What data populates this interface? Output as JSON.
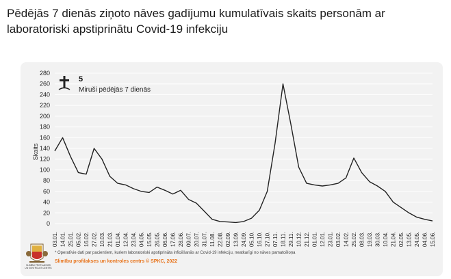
{
  "page": {
    "title": "Pēdējās 7 dienās ziņoto nāves gadījumu kumulatīvais skaits personām ar laboratoriski apstiprinātu Covid-19 infekciju"
  },
  "legend": {
    "icon": "cross-icon",
    "value": "5",
    "label": "Miruši pēdējās 7 dienās"
  },
  "footer": {
    "note": "* Operatīvie dati par pacientiem, kuriem laboratoriski apstiprināta inficēšanās ar Covid-19 infekciju, neatkarīgi no nāves pamatcēloņa",
    "credit": "Slimību profilakses un kontroles centrs © SPKC, 2022",
    "logo_text": "SLIMĪBU PROFILAKSES UN KONTROLES CENTRS"
  },
  "colors": {
    "line": "#222222",
    "grid": "#ffffff",
    "background": "#f2f2f2",
    "credit": "#e8731a"
  },
  "chart_data": {
    "type": "line",
    "title": "Pēdējās 7 dienās ziņoto nāves gadījumu kumulatīvais skaits personām ar laboratoriski apstiprinātu Covid-19 infekciju",
    "xlabel": "",
    "ylabel": "Skaits",
    "ylim": [
      0,
      280
    ],
    "yticks": [
      0,
      20,
      40,
      60,
      80,
      100,
      120,
      140,
      160,
      180,
      200,
      220,
      240,
      260,
      280
    ],
    "xticks": [
      "03.01.",
      "14.01.",
      "25.01.",
      "05.02.",
      "16.02.",
      "27.02.",
      "10.03.",
      "21.03.",
      "01.04.",
      "12.04.",
      "23.04.",
      "04.05.",
      "15.05.",
      "26.05.",
      "06.06.",
      "17.06.",
      "28.06.",
      "09.07.",
      "20.07.",
      "31.07.",
      "11.08.",
      "22.08.",
      "02.09.",
      "13.09.",
      "24.09.",
      "05.10.",
      "16.10.",
      "27.10.",
      "07.11.",
      "18.11.",
      "29.11.",
      "10.12.",
      "21.12.",
      "01.01.",
      "12.01.",
      "23.01.",
      "03.02.",
      "14.02.",
      "25.02.",
      "08.03.",
      "19.03.",
      "30.03.",
      "10.04.",
      "21.04.",
      "02.05.",
      "13.05.",
      "24.05.",
      "04.06.",
      "15.06."
    ],
    "grid": true,
    "series": [
      {
        "name": "Miruši pēdējās 7 dienās",
        "x": [
          0,
          1,
          2,
          3,
          4,
          5,
          6,
          7,
          8,
          9,
          10,
          11,
          12,
          13,
          14,
          15,
          16,
          17,
          18,
          19,
          20,
          21,
          22,
          23,
          24,
          25,
          26,
          27,
          28,
          29,
          30,
          31,
          32,
          33,
          34,
          35,
          36,
          37,
          38,
          39,
          40,
          41,
          42,
          43,
          44,
          45,
          46,
          47,
          48
        ],
        "values": [
          135,
          160,
          125,
          95,
          92,
          140,
          120,
          88,
          75,
          72,
          65,
          60,
          58,
          68,
          62,
          55,
          62,
          45,
          38,
          23,
          8,
          4,
          3,
          2,
          4,
          10,
          25,
          60,
          150,
          260,
          185,
          105,
          75,
          72,
          70,
          72,
          75,
          85,
          122,
          95,
          78,
          70,
          60,
          40,
          30,
          20,
          12,
          8,
          5
        ]
      }
    ]
  }
}
